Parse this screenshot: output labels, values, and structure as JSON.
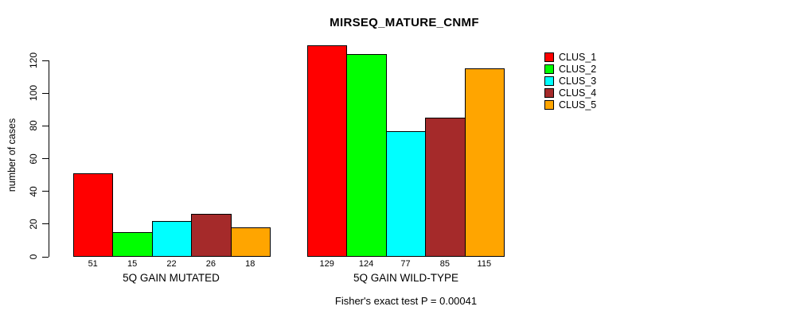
{
  "title": "MIRSEQ_MATURE_CNMF",
  "caption": "Fisher's exact test P = 0.00041",
  "chart_data": {
    "type": "bar",
    "title": "MIRSEQ_MATURE_CNMF",
    "ylabel": "number of cases",
    "xlabel": "",
    "categories": [
      "5Q GAIN MUTATED",
      "5Q GAIN WILD-TYPE"
    ],
    "series": [
      {
        "name": "CLUS_1",
        "color": "#FF0000",
        "values": [
          51,
          129
        ]
      },
      {
        "name": "CLUS_2",
        "color": "#00FF00",
        "values": [
          15,
          124
        ]
      },
      {
        "name": "CLUS_3",
        "color": "#00FFFF",
        "values": [
          22,
          77
        ]
      },
      {
        "name": "CLUS_4",
        "color": "#A52A2A",
        "values": [
          26,
          85
        ]
      },
      {
        "name": "CLUS_5",
        "color": "#FFA500",
        "values": [
          18,
          115
        ]
      }
    ],
    "y_ticks": [
      0,
      20,
      40,
      60,
      80,
      100,
      120
    ],
    "ylim": [
      0,
      130
    ],
    "grid": false,
    "legend_position": "right",
    "bar_value_labels": true,
    "annotation": "Fisher's exact test P = 0.00041"
  }
}
